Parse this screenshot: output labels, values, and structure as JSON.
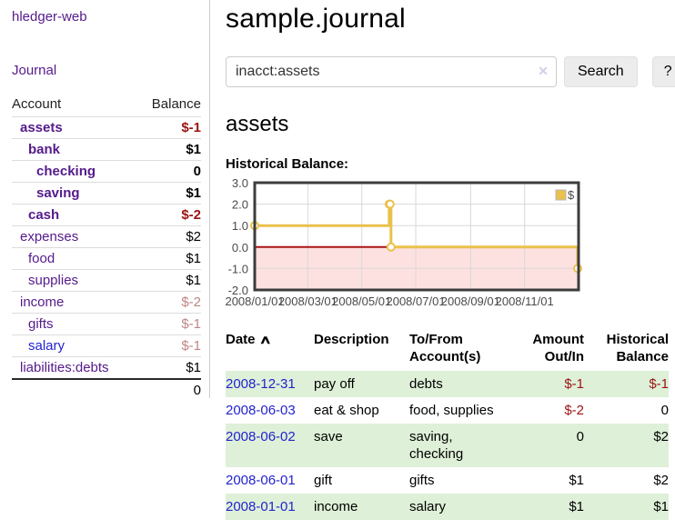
{
  "app": {
    "brand": "hledger-web"
  },
  "sidebar": {
    "journal_label": "Journal",
    "accounts_table": {
      "headers": {
        "account": "Account",
        "balance": "Balance"
      },
      "rows": [
        {
          "name": "assets",
          "balance": "$-1",
          "level": 1,
          "bold": true,
          "name_color": "purple",
          "balance_tone": "negative"
        },
        {
          "name": "bank",
          "balance": "$1",
          "level": 2,
          "bold": true,
          "name_color": "purple",
          "balance_tone": "normal"
        },
        {
          "name": "checking",
          "balance": "0",
          "level": 3,
          "bold": true,
          "name_color": "purple",
          "balance_tone": "normal"
        },
        {
          "name": "saving",
          "balance": "$1",
          "level": 3,
          "bold": true,
          "name_color": "purple",
          "balance_tone": "normal"
        },
        {
          "name": "cash",
          "balance": "$-2",
          "level": 2,
          "bold": true,
          "name_color": "purple",
          "balance_tone": "negative"
        },
        {
          "name": "expenses",
          "balance": "$2",
          "level": 1,
          "bold": false,
          "name_color": "purple",
          "balance_tone": "normal"
        },
        {
          "name": "food",
          "balance": "$1",
          "level": 2,
          "bold": false,
          "name_color": "purple",
          "balance_tone": "normal"
        },
        {
          "name": "supplies",
          "balance": "$1",
          "level": 2,
          "bold": false,
          "name_color": "purple",
          "balance_tone": "normal"
        },
        {
          "name": "income",
          "balance": "$-2",
          "level": 1,
          "bold": false,
          "name_color": "purple",
          "balance_tone": "negative-faded"
        },
        {
          "name": "gifts",
          "balance": "$-1",
          "level": 2,
          "bold": false,
          "name_color": "purple",
          "balance_tone": "negative-faded"
        },
        {
          "name": "salary",
          "balance": "$-1",
          "level": 2,
          "bold": false,
          "name_color": "blue",
          "balance_tone": "negative-faded"
        },
        {
          "name": "liabilities:debts",
          "balance": "$1",
          "level": 1,
          "bold": false,
          "name_color": "purple",
          "balance_tone": "normal"
        }
      ],
      "total": "0"
    }
  },
  "main": {
    "title": "sample.journal",
    "search": {
      "value": "inacct:assets",
      "clear_icon": "✕",
      "button_label": "Search",
      "help_label": "?"
    },
    "account_heading": "assets"
  },
  "chart_data": {
    "type": "step-line",
    "title": "Historical Balance:",
    "legend": "$",
    "legend_position": "top-right",
    "grid": true,
    "x_range": [
      "2008-01-01",
      "2009-01-01"
    ],
    "ylim": [
      -2,
      3
    ],
    "series": [
      {
        "name": "$",
        "color": "#e9c14b",
        "points": [
          [
            "2008-01-01",
            1
          ],
          [
            "2008-06-01",
            2
          ],
          [
            "2008-06-02",
            2
          ],
          [
            "2008-06-03",
            0
          ],
          [
            "2008-12-31",
            -1
          ]
        ]
      }
    ],
    "x_ticks": [
      {
        "date": "2008-01-01",
        "label": "2008/01/01"
      },
      {
        "date": "2008-03-01",
        "label": "2008/03/01"
      },
      {
        "date": "2008-05-01",
        "label": "2008/05/01"
      },
      {
        "date": "2008-07-01",
        "label": "2008/07/01"
      },
      {
        "date": "2008-09-01",
        "label": "2008/09/01"
      },
      {
        "date": "2008-11-01",
        "label": "2008/11/01"
      }
    ],
    "y_ticks": [
      {
        "value": 3,
        "label": "3.0"
      },
      {
        "value": 2,
        "label": "2.0"
      },
      {
        "value": 1,
        "label": "1.0"
      },
      {
        "value": 0,
        "label": "0.0"
      },
      {
        "value": -1,
        "label": "-1.0"
      },
      {
        "value": -2,
        "label": "-2.0"
      }
    ],
    "negative_region_color": "#fde0e0",
    "zero_line_color": "#aa1414",
    "gridline_color": "#d8d8d8",
    "border_color": "#3c3c3c",
    "tick_text_color": "#4a4a4a"
  },
  "register_table": {
    "sort_icon": "∧",
    "headers": [
      {
        "line1": "Date",
        "line2": "",
        "align": "left",
        "sorted": true
      },
      {
        "line1": "Description",
        "line2": "",
        "align": "left",
        "sorted": false
      },
      {
        "line1": "To/From",
        "line2": "Account(s)",
        "align": "left",
        "sorted": false
      },
      {
        "line1": "Amount",
        "line2": "Out/In",
        "align": "right",
        "sorted": false
      },
      {
        "line1": "Historical",
        "line2": "Balance",
        "align": "right",
        "sorted": false
      }
    ],
    "rows": [
      {
        "date": "2008-12-31",
        "description": "pay off",
        "accounts": "debts",
        "amount": "$-1",
        "amount_negative": true,
        "balance": "$-1",
        "balance_negative": true
      },
      {
        "date": "2008-06-03",
        "description": "eat & shop",
        "accounts": "food, supplies",
        "amount": "$-2",
        "amount_negative": true,
        "balance": "0",
        "balance_negative": false
      },
      {
        "date": "2008-06-02",
        "description": "save",
        "accounts": "saving, checking",
        "amount": "0",
        "amount_negative": false,
        "balance": "$2",
        "balance_negative": false
      },
      {
        "date": "2008-06-01",
        "description": "gift",
        "accounts": "gifts",
        "amount": "$1",
        "amount_negative": false,
        "balance": "$2",
        "balance_negative": false
      },
      {
        "date": "2008-01-01",
        "description": "income",
        "accounts": "salary",
        "amount": "$1",
        "amount_negative": false,
        "balance": "$1",
        "balance_negative": false
      }
    ]
  }
}
